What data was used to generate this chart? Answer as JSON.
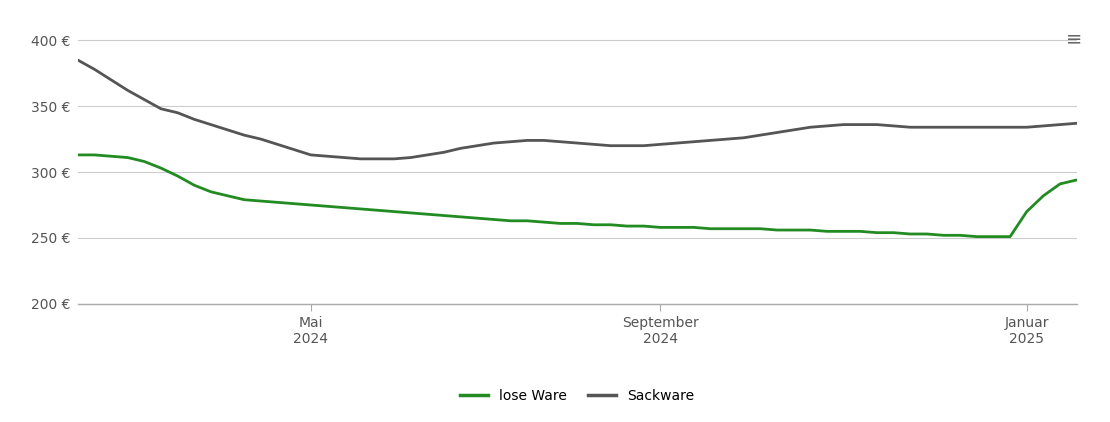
{
  "background_color": "#ffffff",
  "grid_color": "#cccccc",
  "ylim": [
    200,
    420
  ],
  "yticks": [
    200,
    250,
    300,
    350,
    400
  ],
  "ylabel_format": "{} €",
  "xtick_labels": [
    "Mai\n2024",
    "September\n2024",
    "Januar\n2025"
  ],
  "lose_ware_color": "#228B22",
  "sackware_color": "#555555",
  "lose_ware_label": "lose Ware",
  "sackware_label": "Sackware",
  "lose_ware_x": [
    0,
    1,
    2,
    3,
    4,
    5,
    6,
    7,
    8,
    9,
    10,
    11,
    12,
    13,
    14,
    15,
    16,
    17,
    18,
    19,
    20,
    21,
    22,
    23,
    24,
    25,
    26,
    27,
    28,
    29,
    30,
    31,
    32,
    33,
    34,
    35,
    36,
    37,
    38,
    39,
    40,
    41,
    42,
    43,
    44,
    45,
    46,
    47,
    48,
    49,
    50,
    51,
    52,
    53,
    54,
    55,
    56,
    57,
    58,
    59,
    60
  ],
  "lose_ware_y": [
    313,
    313,
    312,
    311,
    308,
    303,
    297,
    290,
    285,
    282,
    279,
    278,
    277,
    276,
    275,
    274,
    273,
    272,
    271,
    270,
    269,
    268,
    267,
    266,
    265,
    264,
    263,
    263,
    262,
    261,
    261,
    260,
    260,
    259,
    259,
    258,
    258,
    258,
    257,
    257,
    257,
    257,
    256,
    256,
    256,
    255,
    255,
    255,
    254,
    254,
    253,
    253,
    252,
    252,
    251,
    251,
    251,
    270,
    282,
    291,
    294
  ],
  "sackware_x": [
    0,
    1,
    2,
    3,
    4,
    5,
    6,
    7,
    8,
    9,
    10,
    11,
    12,
    13,
    14,
    15,
    16,
    17,
    18,
    19,
    20,
    21,
    22,
    23,
    24,
    25,
    26,
    27,
    28,
    29,
    30,
    31,
    32,
    33,
    34,
    35,
    36,
    37,
    38,
    39,
    40,
    41,
    42,
    43,
    44,
    45,
    46,
    47,
    48,
    49,
    50,
    51,
    52,
    53,
    54,
    55,
    56,
    57,
    58,
    59,
    60
  ],
  "sackware_y": [
    385,
    378,
    370,
    362,
    355,
    348,
    345,
    340,
    336,
    332,
    328,
    325,
    321,
    317,
    313,
    312,
    311,
    310,
    310,
    310,
    311,
    313,
    315,
    318,
    320,
    322,
    323,
    324,
    324,
    323,
    322,
    321,
    320,
    320,
    320,
    321,
    322,
    323,
    324,
    325,
    326,
    328,
    330,
    332,
    334,
    335,
    336,
    336,
    336,
    335,
    334,
    334,
    334,
    334,
    334,
    334,
    334,
    334,
    335,
    336,
    337
  ],
  "xtick_positions": [
    14,
    35,
    57
  ],
  "line_width": 2.0
}
